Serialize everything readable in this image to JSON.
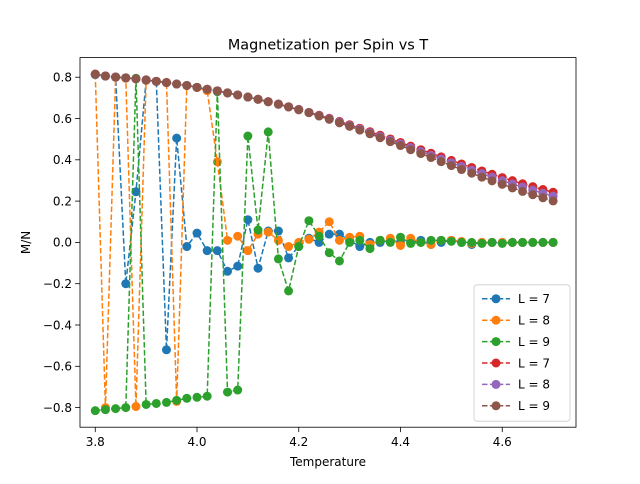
{
  "chart_data": {
    "type": "line",
    "title": "Magnetization per Spin vs T",
    "xlabel": "Temperature",
    "ylabel": "M/N",
    "xlim": [
      3.77,
      4.745
    ],
    "ylim": [
      -0.895,
      0.895
    ],
    "xticks": [
      3.8,
      4.0,
      4.2,
      4.4,
      4.6
    ],
    "xtick_labels": [
      "3.8",
      "4.0",
      "4.2",
      "4.4",
      "4.6"
    ],
    "yticks": [
      -0.8,
      -0.6,
      -0.4,
      -0.2,
      0.0,
      0.2,
      0.4,
      0.6,
      0.8
    ],
    "ytick_labels": [
      "−0.8",
      "−0.6",
      "−0.4",
      "−0.2",
      "0.0",
      "0.2",
      "0.4",
      "0.6",
      "0.8"
    ],
    "grid": false,
    "legend_position": "lower-right",
    "x": [
      3.8,
      3.82,
      3.84,
      3.86,
      3.88,
      3.9,
      3.92,
      3.94,
      3.96,
      3.98,
      4.0,
      4.02,
      4.04,
      4.06,
      4.08,
      4.1,
      4.12,
      4.14,
      4.16,
      4.18,
      4.2,
      4.22,
      4.24,
      4.26,
      4.28,
      4.3,
      4.32,
      4.34,
      4.36,
      4.38,
      4.4,
      4.42,
      4.44,
      4.46,
      4.48,
      4.5,
      4.52,
      4.54,
      4.56,
      4.58,
      4.6,
      4.62,
      4.64,
      4.66,
      4.68,
      4.7
    ],
    "series": [
      {
        "name": "L = 7",
        "color": "#1f77b4",
        "linestyle": "dashed",
        "values": [
          0.812,
          0.805,
          0.8,
          -0.2,
          0.245,
          0.785,
          0.78,
          -0.52,
          0.505,
          -0.02,
          0.045,
          -0.04,
          -0.04,
          -0.14,
          -0.115,
          0.11,
          -0.125,
          0.055,
          0.055,
          -0.075,
          -0.02,
          0.02,
          0.0,
          0.04,
          0.04,
          0.01,
          -0.02,
          0.0,
          0.0,
          0.01,
          0.0,
          0.0,
          0.01,
          -0.01,
          0.0,
          0.01,
          0.0,
          -0.01,
          0.0,
          0.0,
          0.0,
          0.0,
          0.0,
          0.0,
          0.0,
          0.0
        ]
      },
      {
        "name": "L = 8",
        "color": "#ff7f0e",
        "linestyle": "dashed",
        "values": [
          0.815,
          -0.8,
          0.8,
          0.795,
          -0.795,
          0.785,
          0.78,
          0.775,
          -0.77,
          0.76,
          0.75,
          0.735,
          0.39,
          0.01,
          0.03,
          -0.04,
          0.04,
          0.05,
          0.01,
          -0.02,
          0.0,
          0.015,
          0.05,
          0.1,
          0.01,
          0.025,
          0.03,
          -0.01,
          0.01,
          0.02,
          -0.015,
          0.02,
          0.0,
          -0.01,
          0.01,
          0.01,
          0.005,
          -0.005,
          0.0,
          0.0,
          0.0,
          0.0,
          0.0,
          0.0,
          0.0,
          0.0
        ]
      },
      {
        "name": "L = 9",
        "color": "#2ca02c",
        "linestyle": "dashed",
        "values": [
          -0.815,
          -0.81,
          -0.805,
          -0.8,
          0.795,
          -0.785,
          -0.78,
          -0.775,
          -0.765,
          -0.755,
          -0.75,
          -0.745,
          0.73,
          -0.725,
          -0.715,
          0.515,
          0.06,
          0.535,
          -0.08,
          -0.235,
          -0.02,
          0.105,
          0.03,
          -0.05,
          -0.09,
          0.0,
          0.01,
          -0.03,
          0.01,
          0.0,
          0.025,
          -0.005,
          0.0,
          0.01,
          0.01,
          0.005,
          0.0,
          0.0,
          -0.005,
          0.0,
          -0.005,
          0.0,
          0.0,
          0.0,
          0.0,
          0.0
        ]
      },
      {
        "name": "L = 7",
        "color": "#d62728",
        "linestyle": "dashed",
        "values": [
          0.815,
          0.806,
          0.801,
          0.797,
          0.792,
          0.787,
          0.78,
          0.774,
          0.767,
          0.76,
          0.751,
          0.742,
          0.734,
          0.724,
          0.714,
          0.704,
          0.693,
          0.682,
          0.67,
          0.657,
          0.644,
          0.63,
          0.616,
          0.601,
          0.586,
          0.57,
          0.553,
          0.536,
          0.519,
          0.501,
          0.484,
          0.466,
          0.449,
          0.432,
          0.414,
          0.397,
          0.38,
          0.363,
          0.346,
          0.33,
          0.314,
          0.299,
          0.284,
          0.27,
          0.256,
          0.243
        ]
      },
      {
        "name": "L = 8",
        "color": "#9467bd",
        "linestyle": "dashed",
        "values": [
          0.815,
          0.806,
          0.801,
          0.797,
          0.792,
          0.787,
          0.78,
          0.774,
          0.767,
          0.76,
          0.751,
          0.742,
          0.734,
          0.724,
          0.714,
          0.704,
          0.693,
          0.681,
          0.669,
          0.656,
          0.643,
          0.629,
          0.614,
          0.599,
          0.583,
          0.566,
          0.549,
          0.531,
          0.513,
          0.495,
          0.477,
          0.459,
          0.44,
          0.422,
          0.404,
          0.386,
          0.368,
          0.35,
          0.333,
          0.316,
          0.299,
          0.283,
          0.268,
          0.253,
          0.238,
          0.224
        ]
      },
      {
        "name": "L = 9",
        "color": "#8c564b",
        "linestyle": "dashed",
        "values": [
          0.815,
          0.806,
          0.801,
          0.797,
          0.792,
          0.787,
          0.78,
          0.774,
          0.767,
          0.76,
          0.751,
          0.742,
          0.734,
          0.724,
          0.714,
          0.704,
          0.693,
          0.681,
          0.669,
          0.656,
          0.642,
          0.628,
          0.612,
          0.596,
          0.579,
          0.562,
          0.544,
          0.526,
          0.507,
          0.488,
          0.469,
          0.449,
          0.43,
          0.411,
          0.391,
          0.372,
          0.353,
          0.335,
          0.316,
          0.298,
          0.281,
          0.264,
          0.247,
          0.231,
          0.216,
          0.201
        ]
      }
    ]
  }
}
